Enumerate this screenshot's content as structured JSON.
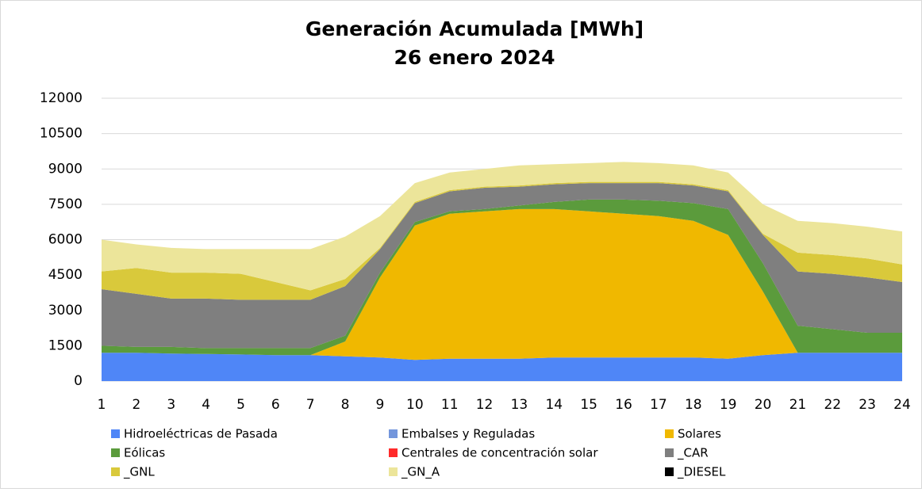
{
  "chart_data": {
    "type": "stacked_area",
    "title": "Generación Acumulada [MWh]",
    "subtitle": "26 enero 2024",
    "x": [
      1,
      2,
      3,
      4,
      5,
      6,
      7,
      8,
      9,
      10,
      11,
      12,
      13,
      14,
      15,
      16,
      17,
      18,
      19,
      20,
      21,
      22,
      23,
      24
    ],
    "xlim": [
      1,
      24
    ],
    "ylim": [
      0,
      12000
    ],
    "yticks": [
      0,
      1500,
      3000,
      4500,
      6000,
      7500,
      9000,
      10500,
      12000
    ],
    "grid": true,
    "series": [
      {
        "name": "Hidroeléctricas de Pasada",
        "color": "#4f86f7",
        "values": [
          1200,
          1200,
          1170,
          1150,
          1130,
          1100,
          1100,
          1050,
          1000,
          900,
          950,
          950,
          950,
          1000,
          1000,
          1000,
          1000,
          1000,
          950,
          1100,
          1200,
          1200,
          1200,
          1200
        ]
      },
      {
        "name": "Embalses y Reguladas",
        "color": "#7396dc",
        "values": [
          0,
          0,
          0,
          0,
          0,
          0,
          0,
          0,
          0,
          0,
          0,
          0,
          0,
          0,
          0,
          0,
          0,
          0,
          0,
          0,
          0,
          0,
          0,
          0
        ]
      },
      {
        "name": "Solares",
        "color": "#f0b800",
        "values": [
          0,
          0,
          0,
          0,
          0,
          0,
          0,
          630,
          3400,
          5700,
          6150,
          6250,
          6350,
          6300,
          6200,
          6100,
          6000,
          5800,
          5250,
          2700,
          0,
          0,
          0,
          0
        ]
      },
      {
        "name": "Eólicas",
        "color": "#5b9b3c",
        "values": [
          300,
          250,
          280,
          250,
          270,
          300,
          300,
          250,
          200,
          150,
          100,
          100,
          150,
          300,
          500,
          600,
          650,
          750,
          1100,
          1200,
          1150,
          1000,
          850,
          850
        ]
      },
      {
        "name": "Centrales de concentración solar",
        "color": "#ff2a2a",
        "values": [
          0,
          0,
          0,
          0,
          0,
          0,
          0,
          0,
          0,
          0,
          0,
          0,
          0,
          0,
          0,
          0,
          0,
          0,
          0,
          0,
          0,
          0,
          0,
          0
        ]
      },
      {
        "name": "_CAR",
        "color": "#7f7f7f",
        "values": [
          2400,
          2250,
          2050,
          2100,
          2050,
          2050,
          2050,
          2100,
          1000,
          800,
          850,
          900,
          800,
          750,
          700,
          700,
          750,
          750,
          750,
          1200,
          2300,
          2350,
          2350,
          2150
        ]
      },
      {
        "name": "_GNL",
        "color": "#d9c93b",
        "values": [
          750,
          1100,
          1100,
          1100,
          1100,
          750,
          400,
          300,
          50,
          50,
          50,
          50,
          50,
          50,
          50,
          50,
          50,
          50,
          50,
          50,
          800,
          800,
          800,
          750
        ]
      },
      {
        "name": "_GN_A",
        "color": "#ece59a",
        "values": [
          1350,
          1000,
          1050,
          1000,
          1050,
          1400,
          1750,
          1800,
          1350,
          800,
          750,
          750,
          850,
          800,
          800,
          850,
          800,
          800,
          750,
          1250,
          1350,
          1350,
          1350,
          1400
        ]
      },
      {
        "name": "_DIESEL",
        "color": "#000000",
        "values": [
          0,
          0,
          0,
          0,
          0,
          0,
          0,
          0,
          0,
          0,
          0,
          0,
          0,
          0,
          0,
          0,
          0,
          0,
          0,
          0,
          0,
          0,
          0,
          0
        ]
      }
    ]
  }
}
